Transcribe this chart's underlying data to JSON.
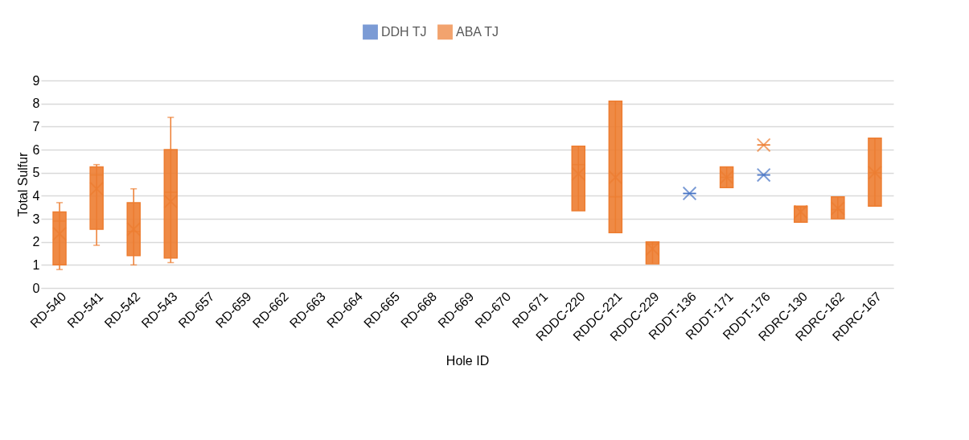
{
  "chart_data": {
    "type": "box",
    "xlabel": "Hole ID",
    "ylabel": "Total Sulfur",
    "categories": [
      "RD-540",
      "RD-541",
      "RD-542",
      "RD-543",
      "RD-657",
      "RD-659",
      "RD-662",
      "RD-663",
      "RD-664",
      "RD-665",
      "RD-668",
      "RD-669",
      "RD-670",
      "RD-671",
      "RDDC-220",
      "RDDC-221",
      "RDDC-229",
      "RDDT-136",
      "RDDT-171",
      "RDDT-176",
      "RDRC-130",
      "RDRC-162",
      "RDRC-167"
    ],
    "series": [
      {
        "name": "DDH TJ",
        "color": "#4472c4",
        "boxes": [
          null,
          null,
          null,
          null,
          null,
          null,
          null,
          null,
          null,
          null,
          null,
          null,
          null,
          null,
          null,
          null,
          null,
          {
            "low": 4.1,
            "q1": 4.1,
            "median": 4.1,
            "q3": 4.1,
            "high": 4.1,
            "mean": 4.1
          },
          null,
          {
            "low": 4.9,
            "q1": 4.9,
            "median": 4.9,
            "q3": 4.9,
            "high": 4.9,
            "mean": 4.9
          },
          null,
          null,
          null
        ]
      },
      {
        "name": "ABA TJ",
        "color": "#ed7d31",
        "boxes": [
          {
            "low": 0.8,
            "q1": 1.0,
            "median": 2.9,
            "q3": 3.3,
            "high": 3.7,
            "mean": 2.35
          },
          {
            "low": 1.85,
            "q1": 2.55,
            "median": 4.9,
            "q3": 5.25,
            "high": 5.35,
            "mean": 4.3
          },
          {
            "low": 1.0,
            "q1": 1.4,
            "median": 2.45,
            "q3": 3.7,
            "high": 4.3,
            "mean": 2.55
          },
          {
            "low": 1.1,
            "q1": 1.3,
            "median": 4.15,
            "q3": 6.0,
            "high": 7.4,
            "mean": 3.75
          },
          null,
          null,
          null,
          null,
          null,
          null,
          null,
          null,
          null,
          null,
          {
            "low": 3.35,
            "q1": 3.35,
            "median": 5.35,
            "q3": 6.15,
            "high": 6.15,
            "mean": 4.95
          },
          {
            "low": 2.4,
            "q1": 2.4,
            "median": 3.95,
            "q3": 8.1,
            "high": 8.1,
            "mean": 4.8
          },
          {
            "low": 1.05,
            "q1": 1.05,
            "median": 1.9,
            "q3": 2.0,
            "high": 2.0,
            "mean": 1.7
          },
          null,
          {
            "low": 4.35,
            "q1": 4.35,
            "median": 4.8,
            "q3": 5.25,
            "high": 5.25,
            "mean": 4.8
          },
          {
            "low": 6.2,
            "q1": 6.2,
            "median": 6.2,
            "q3": 6.2,
            "high": 6.2,
            "mean": 6.2
          },
          {
            "low": 2.85,
            "q1": 2.85,
            "median": 3.5,
            "q3": 3.55,
            "high": 3.55,
            "mean": 3.3
          },
          {
            "low": 3.0,
            "q1": 3.0,
            "median": 3.4,
            "q3": 3.95,
            "high": 3.95,
            "mean": 3.45
          },
          {
            "low": 3.55,
            "q1": 3.55,
            "median": 5.0,
            "q3": 6.5,
            "high": 6.5,
            "mean": 5.0
          }
        ]
      }
    ],
    "ylim": [
      0,
      9
    ],
    "yticks": [
      0,
      1,
      2,
      3,
      4,
      5,
      6,
      7,
      8,
      9
    ],
    "grid": "y",
    "legend": "top"
  }
}
